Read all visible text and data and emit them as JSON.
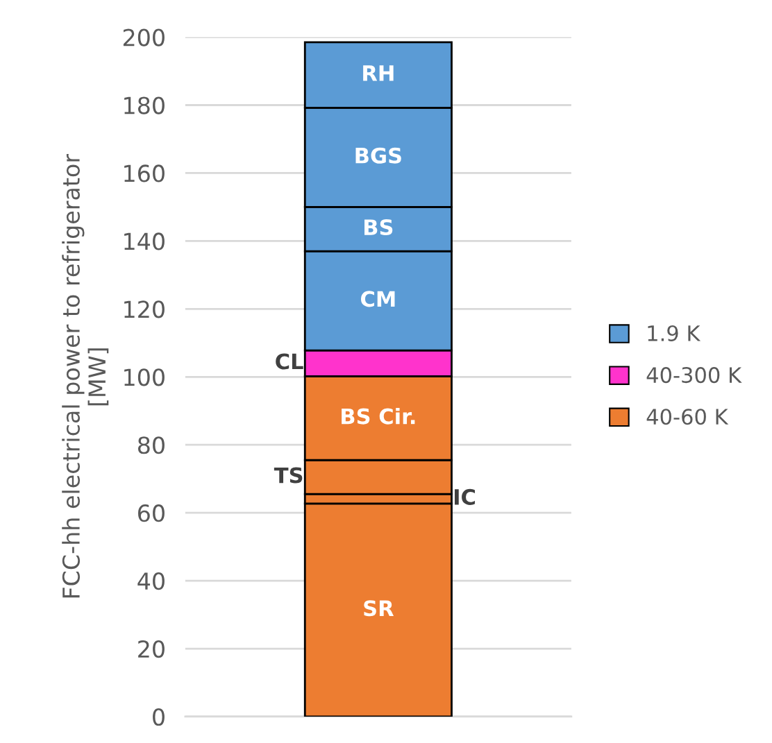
{
  "chart_data": {
    "type": "bar",
    "stacked": true,
    "categories": [
      null
    ],
    "ylabel": "FCC-hh electrical power to refrigerator\n[MW]",
    "ylim": [
      0,
      200
    ],
    "yticks": [
      0,
      20,
      40,
      60,
      80,
      100,
      120,
      140,
      160,
      180,
      200
    ],
    "grid": "y",
    "legend": "right",
    "series": [
      {
        "name": "40-60 K",
        "color": "#ed7d31",
        "values": [
          62.7
        ],
        "value_labels": [
          "SR"
        ]
      },
      {
        "color": "#ed7d31",
        "values": [
          2.8
        ],
        "value_labels": [
          "IC"
        ]
      },
      {
        "color": "#ed7d31",
        "values": [
          10
        ],
        "value_labels": [
          "TS"
        ]
      },
      {
        "color": "#ed7d31",
        "values": [
          24.7
        ],
        "value_labels": [
          "BS Cir."
        ]
      },
      {
        "name": "40-300 K",
        "color": "#ff33cc",
        "values": [
          7.6
        ],
        "value_labels": [
          "CL"
        ]
      },
      {
        "name": "1.9 K",
        "color": "#5b9bd5",
        "values": [
          29.2
        ],
        "value_labels": [
          "CM"
        ]
      },
      {
        "color": "#5b9bd5",
        "values": [
          13
        ],
        "value_labels": [
          "BS"
        ]
      },
      {
        "color": "#5b9bd5",
        "values": [
          29.2
        ],
        "value_labels": [
          "BGS"
        ]
      },
      {
        "color": "#5b9bd5",
        "values": [
          19.3
        ],
        "value_labels": [
          "RH"
        ]
      }
    ]
  }
}
